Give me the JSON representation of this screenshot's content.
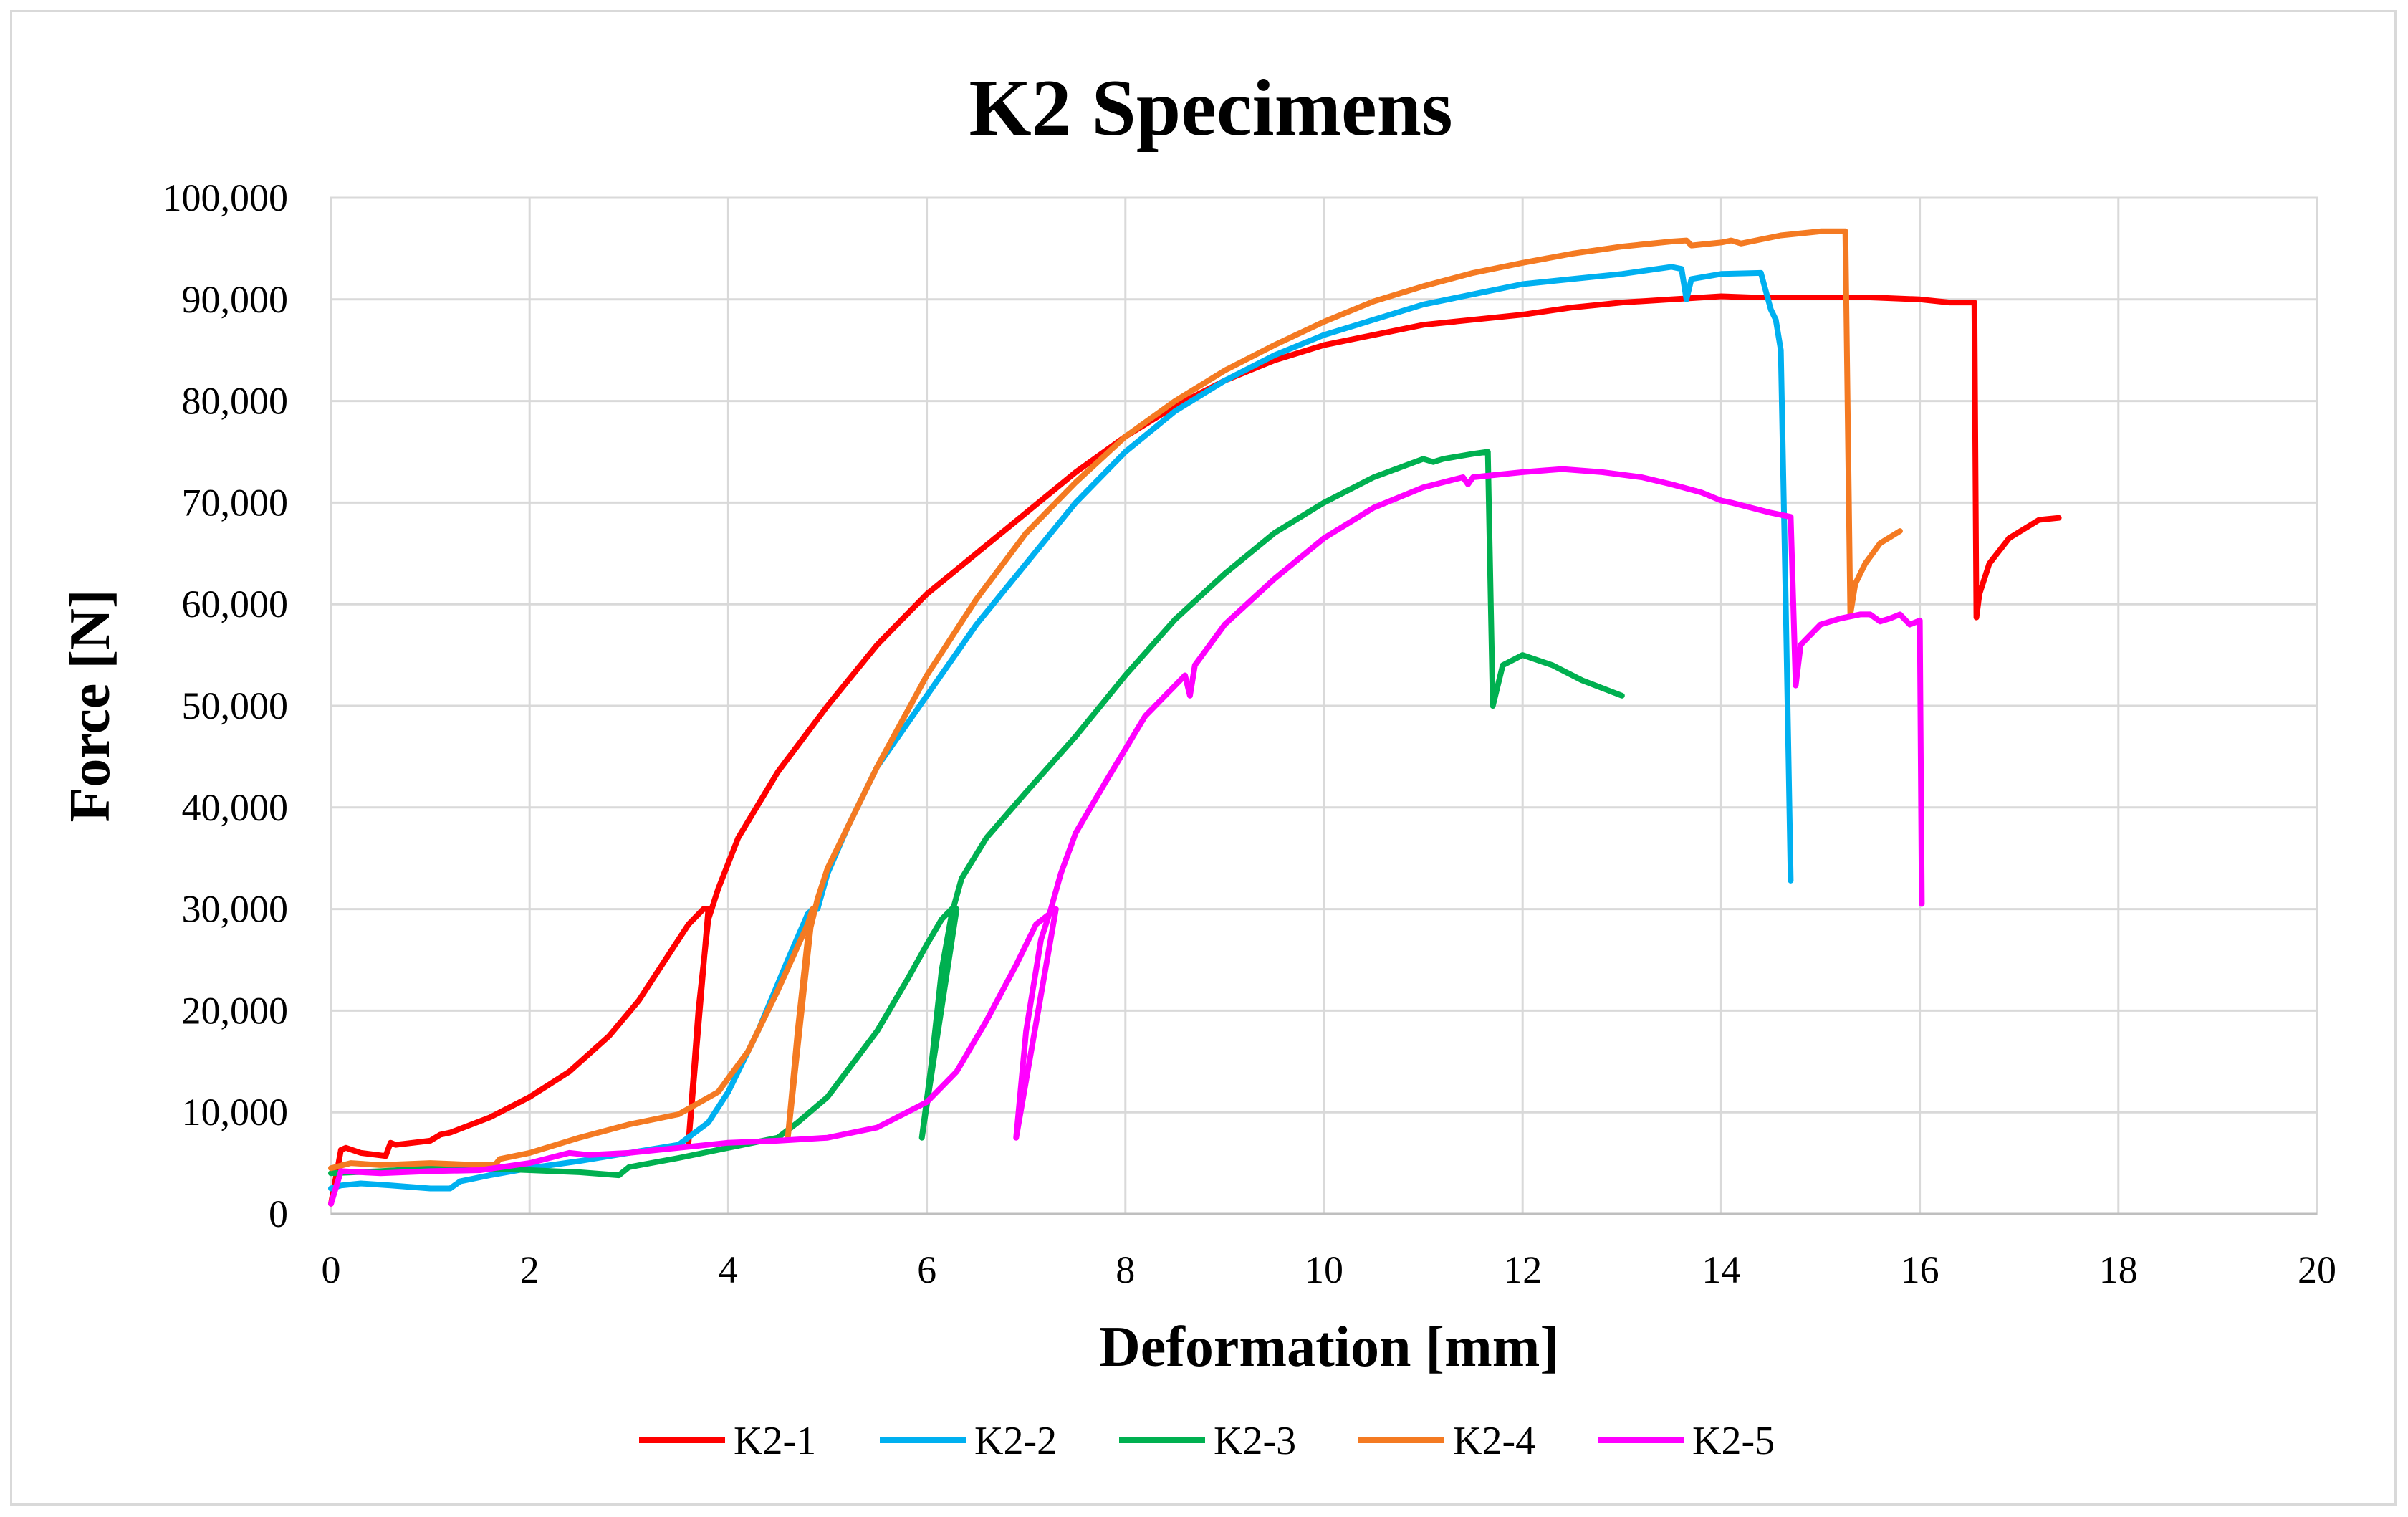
{
  "chart_data": {
    "type": "line",
    "title": "K2 Specimens",
    "xlabel": "Deformation  [mm]",
    "ylabel": "Force  [N]",
    "xlim": [
      0,
      20
    ],
    "ylim": [
      0,
      100000
    ],
    "xticks": [
      0,
      2,
      4,
      6,
      8,
      10,
      12,
      14,
      16,
      18,
      20
    ],
    "yticks": [
      0,
      10000,
      20000,
      30000,
      40000,
      50000,
      60000,
      70000,
      80000,
      90000,
      100000
    ],
    "xtick_labels": [
      "0",
      "2",
      "4",
      "6",
      "8",
      "10",
      "12",
      "14",
      "16",
      "18",
      "20"
    ],
    "ytick_labels": [
      "0",
      "10,000",
      "20,000",
      "30,000",
      "40,000",
      "50,000",
      "60,000",
      "70,000",
      "80,000",
      "90,000",
      "100,000"
    ],
    "grid": true,
    "legend_position": "bottom",
    "series": [
      {
        "name": "K2-1",
        "color": "#ff0000",
        "x": [
          0.0,
          0.1,
          0.15,
          0.3,
          0.55,
          0.6,
          0.65,
          1.0,
          1.1,
          1.2,
          1.6,
          2.0,
          2.4,
          2.8,
          3.1,
          3.4,
          3.6,
          3.75,
          3.8,
          3.6,
          3.7,
          3.8,
          3.85,
          3.9,
          4.1,
          4.5,
          5.0,
          5.5,
          6.0,
          6.5,
          7.0,
          7.5,
          8.0,
          8.5,
          9.0,
          9.5,
          10.0,
          10.5,
          11.0,
          11.5,
          12.0,
          12.5,
          13.0,
          13.5,
          14.0,
          14.3,
          14.5,
          15.0,
          15.5,
          16.0,
          16.3,
          16.55,
          16.57,
          16.6,
          16.7,
          16.9,
          17.2,
          17.4
        ],
        "y": [
          1000,
          6300,
          6500,
          6000,
          5700,
          7000,
          6800,
          7200,
          7800,
          8000,
          9500,
          11500,
          14000,
          17500,
          21000,
          25500,
          28500,
          30000,
          30000,
          7000,
          20000,
          29000,
          30500,
          32000,
          37000,
          43500,
          50000,
          56000,
          61000,
          65000,
          69000,
          73000,
          76500,
          79500,
          82000,
          84000,
          85500,
          86500,
          87500,
          88000,
          88500,
          89200,
          89700,
          90000,
          90300,
          90200,
          90200,
          90200,
          90200,
          90000,
          89700,
          89700,
          58700,
          61000,
          64000,
          66500,
          68300,
          68500
        ]
      },
      {
        "name": "K2-2",
        "color": "#00b0f0",
        "x": [
          0.0,
          0.1,
          0.3,
          0.6,
          1.0,
          1.2,
          1.3,
          1.6,
          2.0,
          2.5,
          3.0,
          3.5,
          3.8,
          4.0,
          4.3,
          4.6,
          4.8,
          4.85,
          4.9,
          5.0,
          5.2,
          5.5,
          6.0,
          6.5,
          7.0,
          7.5,
          8.0,
          8.5,
          9.0,
          9.5,
          10.0,
          10.5,
          11.0,
          11.5,
          12.0,
          12.5,
          13.0,
          13.5,
          13.6,
          13.65,
          13.7,
          14.0,
          14.4,
          14.5,
          14.55,
          14.6,
          14.65,
          14.7
        ],
        "y": [
          2500,
          2800,
          3000,
          2800,
          2500,
          2500,
          3200,
          3800,
          4500,
          5200,
          6000,
          6800,
          9000,
          12000,
          18000,
          25000,
          29500,
          30000,
          30000,
          33500,
          38000,
          44000,
          51000,
          58000,
          64000,
          70000,
          75000,
          79000,
          82000,
          84500,
          86500,
          88000,
          89500,
          90500,
          91500,
          92000,
          92500,
          93200,
          93000,
          90000,
          92000,
          92500,
          92600,
          89000,
          88000,
          85000,
          60000,
          32800
        ]
      },
      {
        "name": "K2-3",
        "color": "#00b050",
        "x": [
          0.0,
          0.5,
          1.0,
          1.5,
          2.0,
          2.5,
          2.9,
          3.0,
          3.5,
          4.0,
          4.5,
          4.7,
          5.0,
          5.5,
          5.8,
          6.0,
          6.15,
          6.25,
          6.3,
          5.95,
          6.05,
          6.15,
          6.25,
          6.35,
          6.6,
          7.0,
          7.5,
          8.0,
          8.5,
          9.0,
          9.5,
          10.0,
          10.5,
          11.0,
          11.1,
          11.2,
          11.5,
          11.65,
          11.68,
          11.7,
          11.8,
          12.0,
          12.3,
          12.6,
          13.0
        ],
        "y": [
          4000,
          4200,
          4500,
          4500,
          4300,
          4100,
          3800,
          4600,
          5500,
          6500,
          7500,
          9000,
          11500,
          18000,
          23000,
          26500,
          29000,
          30000,
          30000,
          7500,
          15000,
          24000,
          29500,
          33000,
          37000,
          41500,
          47000,
          53000,
          58500,
          63000,
          67000,
          70000,
          72500,
          74300,
          74000,
          74300,
          74800,
          75000,
          60000,
          50000,
          54000,
          55000,
          54000,
          52500,
          51000
        ]
      },
      {
        "name": "K2-4",
        "color": "#f47a22",
        "x": [
          0.0,
          0.2,
          0.5,
          1.0,
          1.5,
          1.65,
          1.7,
          2.0,
          2.5,
          3.0,
          3.5,
          3.9,
          4.2,
          4.5,
          4.8,
          4.85,
          4.6,
          4.7,
          4.8,
          4.9,
          5.0,
          5.5,
          6.0,
          6.5,
          7.0,
          7.5,
          8.0,
          8.5,
          9.0,
          9.5,
          10.0,
          10.5,
          11.0,
          11.5,
          12.0,
          12.5,
          13.0,
          13.5,
          13.65,
          13.7,
          14.0,
          14.1,
          14.2,
          14.6,
          15.0,
          15.25,
          15.3,
          15.35,
          15.45,
          15.6,
          15.8
        ],
        "y": [
          4500,
          5000,
          4800,
          5000,
          4800,
          4800,
          5400,
          6000,
          7500,
          8800,
          9800,
          12000,
          16000,
          22000,
          28500,
          30000,
          7500,
          18000,
          27000,
          31000,
          34000,
          44000,
          53000,
          60500,
          67000,
          72000,
          76500,
          80000,
          83000,
          85500,
          87800,
          89800,
          91300,
          92600,
          93600,
          94500,
          95200,
          95700,
          95800,
          95300,
          95600,
          95800,
          95500,
          96300,
          96700,
          96700,
          59000,
          62000,
          64000,
          66000,
          67200
        ]
      },
      {
        "name": "K2-5",
        "color": "#ff00ff",
        "x": [
          0.0,
          0.1,
          0.5,
          1.0,
          1.5,
          2.0,
          2.4,
          2.6,
          3.0,
          3.5,
          4.0,
          4.5,
          5.0,
          5.5,
          6.0,
          6.3,
          6.6,
          6.9,
          7.1,
          7.3,
          6.9,
          7.0,
          7.15,
          7.25,
          7.35,
          7.5,
          7.8,
          8.2,
          8.6,
          8.65,
          8.7,
          9.0,
          9.5,
          10.0,
          10.5,
          11.0,
          11.4,
          11.45,
          11.5,
          12.0,
          12.4,
          12.8,
          13.2,
          13.5,
          13.8,
          14.0,
          14.1,
          14.5,
          14.7,
          14.75,
          14.8,
          15.0,
          15.2,
          15.4,
          15.5,
          15.6,
          15.7,
          15.8,
          15.9,
          16.0,
          16.02
        ],
        "y": [
          1000,
          4200,
          4000,
          4200,
          4300,
          5000,
          6000,
          5800,
          6000,
          6500,
          7000,
          7200,
          7500,
          8500,
          11000,
          14000,
          19000,
          24500,
          28500,
          30000,
          7500,
          18000,
          27000,
          30000,
          33500,
          37500,
          42500,
          49000,
          53000,
          51000,
          54000,
          58000,
          62500,
          66500,
          69500,
          71500,
          72500,
          71800,
          72500,
          73000,
          73300,
          73000,
          72500,
          71800,
          71000,
          70200,
          70000,
          69000,
          68600,
          52000,
          56000,
          58000,
          58600,
          59000,
          59000,
          58300,
          58600,
          59000,
          58000,
          58400,
          30500
        ]
      }
    ]
  }
}
